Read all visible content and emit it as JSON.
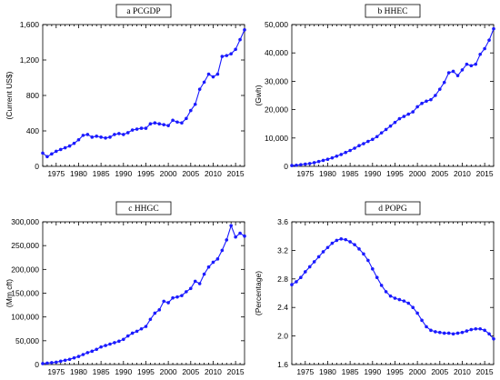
{
  "style": {
    "line_color": "#1a1aff",
    "marker_color": "#1a1aff",
    "frame_color": "#000000"
  },
  "chart_data": [
    {
      "type": "line",
      "title": "a PCGDP",
      "ylabel": "(Current US$)",
      "xlim": [
        1972,
        2017
      ],
      "ylim": [
        0,
        1600
      ],
      "x_ticks": [
        1975,
        1980,
        1985,
        1990,
        1995,
        2000,
        2005,
        2010,
        2015
      ],
      "y_ticks": [
        0,
        400,
        800,
        1200,
        1600
      ],
      "y_tick_labels": [
        "0",
        "400",
        "800",
        "1,200",
        "1,600"
      ],
      "grid": false,
      "x": [
        1972,
        1973,
        1974,
        1975,
        1976,
        1977,
        1978,
        1979,
        1980,
        1981,
        1982,
        1983,
        1984,
        1985,
        1986,
        1987,
        1988,
        1989,
        1990,
        1991,
        1992,
        1993,
        1994,
        1995,
        1996,
        1997,
        1998,
        1999,
        2000,
        2001,
        2002,
        2003,
        2004,
        2005,
        2006,
        2007,
        2008,
        2009,
        2010,
        2011,
        2012,
        2013,
        2014,
        2015,
        2016,
        2017
      ],
      "values": [
        150,
        110,
        140,
        170,
        190,
        210,
        230,
        260,
        300,
        350,
        360,
        330,
        340,
        330,
        320,
        330,
        360,
        370,
        360,
        380,
        410,
        420,
        430,
        430,
        480,
        490,
        480,
        470,
        460,
        520,
        500,
        490,
        540,
        630,
        700,
        870,
        950,
        1040,
        1010,
        1040,
        1240,
        1250,
        1270,
        1320,
        1430,
        1540
      ]
    },
    {
      "type": "line",
      "title": "b HHEC",
      "ylabel": "(Gwh)",
      "xlim": [
        1972,
        2017
      ],
      "ylim": [
        0,
        50000
      ],
      "x_ticks": [
        1975,
        1980,
        1985,
        1990,
        1995,
        2000,
        2005,
        2010,
        2015
      ],
      "y_ticks": [
        0,
        10000,
        20000,
        30000,
        40000,
        50000
      ],
      "y_tick_labels": [
        "0",
        "10,000",
        "20,000",
        "30,000",
        "40,000",
        "50,000"
      ],
      "grid": false,
      "x": [
        1972,
        1973,
        1974,
        1975,
        1976,
        1977,
        1978,
        1979,
        1980,
        1981,
        1982,
        1983,
        1984,
        1985,
        1986,
        1987,
        1988,
        1989,
        1990,
        1991,
        1992,
        1993,
        1994,
        1995,
        1996,
        1997,
        1998,
        1999,
        2000,
        2001,
        2002,
        2003,
        2004,
        2005,
        2006,
        2007,
        2008,
        2009,
        2010,
        2011,
        2012,
        2013,
        2014,
        2015,
        2016,
        2017
      ],
      "values": [
        300,
        400,
        600,
        800,
        1000,
        1300,
        1700,
        2100,
        2500,
        3000,
        3600,
        4200,
        4900,
        5600,
        6400,
        7300,
        8000,
        8800,
        9500,
        10500,
        11800,
        13000,
        14200,
        15500,
        16800,
        17600,
        18400,
        19200,
        21000,
        22200,
        23000,
        23500,
        25000,
        27200,
        29600,
        33000,
        33500,
        32000,
        34000,
        36000,
        35500,
        36000,
        39500,
        41500,
        44500,
        48500
      ]
    },
    {
      "type": "line",
      "title": "c HHGC",
      "ylabel": "(Mm cft)",
      "xlim": [
        1972,
        2017
      ],
      "ylim": [
        0,
        300000
      ],
      "x_ticks": [
        1975,
        1980,
        1985,
        1990,
        1995,
        2000,
        2005,
        2010,
        2015
      ],
      "y_ticks": [
        0,
        50000,
        100000,
        150000,
        200000,
        250000,
        300000
      ],
      "y_tick_labels": [
        "0",
        "50,000",
        "100,000",
        "150,000",
        "200,000",
        "250,000",
        "300,000"
      ],
      "grid": false,
      "x": [
        1972,
        1973,
        1974,
        1975,
        1976,
        1977,
        1978,
        1979,
        1980,
        1981,
        1982,
        1983,
        1984,
        1985,
        1986,
        1987,
        1988,
        1989,
        1990,
        1991,
        1992,
        1993,
        1994,
        1995,
        1996,
        1997,
        1998,
        1999,
        2000,
        2001,
        2002,
        2003,
        2004,
        2005,
        2006,
        2007,
        2008,
        2009,
        2010,
        2011,
        2012,
        2013,
        2014,
        2015,
        2016,
        2017
      ],
      "values": [
        2000,
        3000,
        4000,
        5000,
        7000,
        9000,
        11000,
        14000,
        17000,
        21000,
        25000,
        28000,
        32000,
        37000,
        40000,
        43000,
        46000,
        49000,
        53000,
        60000,
        66000,
        70000,
        75000,
        80000,
        95000,
        108000,
        115000,
        133000,
        130000,
        140000,
        142000,
        145000,
        153000,
        160000,
        175000,
        170000,
        190000,
        205000,
        215000,
        222000,
        240000,
        262000,
        292000,
        268000,
        276000,
        270000
      ]
    },
    {
      "type": "line",
      "title": "d POPG",
      "ylabel": "(Percentage)",
      "xlim": [
        1972,
        2017
      ],
      "ylim": [
        1.6,
        3.6
      ],
      "x_ticks": [
        1975,
        1980,
        1985,
        1990,
        1995,
        2000,
        2005,
        2010,
        2015
      ],
      "y_ticks": [
        1.6,
        2.0,
        2.4,
        2.8,
        3.2,
        3.6
      ],
      "y_tick_labels": [
        "1.6",
        "2.0",
        "2.4",
        "2.8",
        "3.2",
        "3.6"
      ],
      "grid": false,
      "x": [
        1972,
        1973,
        1974,
        1975,
        1976,
        1977,
        1978,
        1979,
        1980,
        1981,
        1982,
        1983,
        1984,
        1985,
        1986,
        1987,
        1988,
        1989,
        1990,
        1991,
        1992,
        1993,
        1994,
        1995,
        1996,
        1997,
        1998,
        1999,
        2000,
        2001,
        2002,
        2003,
        2004,
        2005,
        2006,
        2007,
        2008,
        2009,
        2010,
        2011,
        2012,
        2013,
        2014,
        2015,
        2016,
        2017
      ],
      "values": [
        2.72,
        2.76,
        2.82,
        2.9,
        2.97,
        3.04,
        3.11,
        3.18,
        3.24,
        3.3,
        3.34,
        3.36,
        3.35,
        3.32,
        3.28,
        3.22,
        3.15,
        3.06,
        2.94,
        2.82,
        2.71,
        2.62,
        2.56,
        2.53,
        2.51,
        2.49,
        2.46,
        2.4,
        2.32,
        2.22,
        2.13,
        2.08,
        2.06,
        2.05,
        2.04,
        2.04,
        2.03,
        2.04,
        2.05,
        2.07,
        2.09,
        2.1,
        2.1,
        2.08,
        2.03,
        1.96
      ]
    }
  ]
}
